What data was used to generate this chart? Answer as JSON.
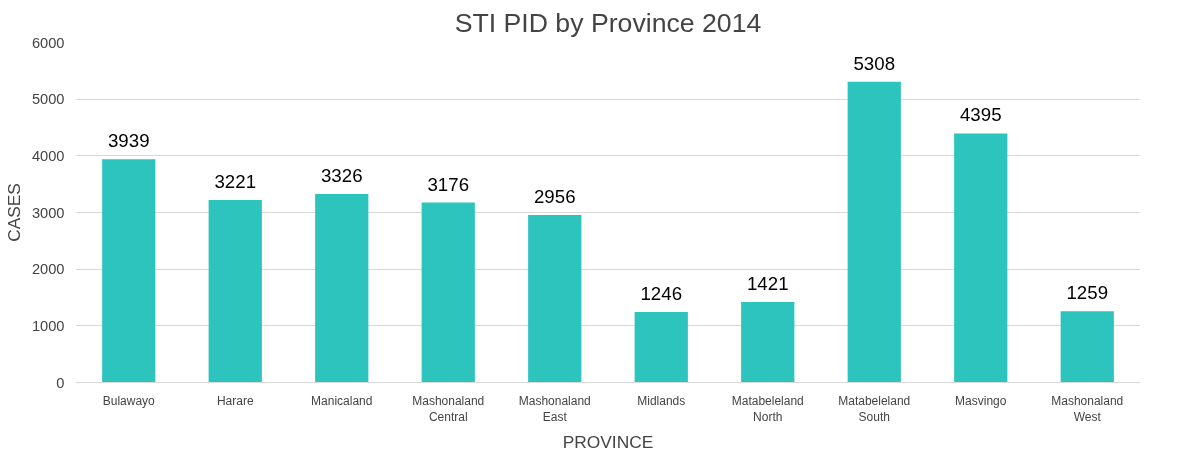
{
  "chart_data": {
    "type": "bar",
    "title": "STI PID by Province 2014",
    "xlabel": "PROVINCE",
    "ylabel": "CASES",
    "categories": [
      "Bulawayo",
      "Harare",
      "Manicaland",
      "Mashonaland Central",
      "Mashonaland East",
      "Midlands",
      "Matabeleland North",
      "Matabeleland South",
      "Masvingo",
      "Mashonaland West"
    ],
    "values": [
      3939,
      3221,
      3326,
      3176,
      2956,
      1246,
      1421,
      5308,
      4395,
      1259
    ],
    "color": "#2ec4be",
    "ylim": [
      0,
      6000
    ],
    "yticks": [
      0,
      1000,
      2000,
      3000,
      4000,
      5000,
      6000
    ],
    "grid": "y",
    "data_labels": true
  }
}
